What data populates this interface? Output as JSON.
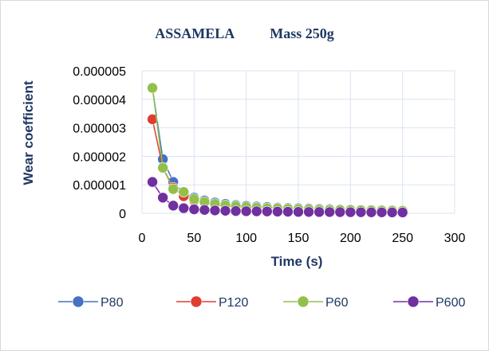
{
  "chart_data": {
    "type": "line",
    "title_parts": [
      "ASSAMELA",
      "Mass 250g"
    ],
    "xlabel": "Time (s)",
    "ylabel": "Wear coefficient",
    "xlim": [
      0,
      300
    ],
    "ylim": [
      0,
      5e-06
    ],
    "x_ticks": [
      "0",
      "50",
      "100",
      "150",
      "200",
      "250",
      "300"
    ],
    "y_ticks": [
      "0",
      "0.000001",
      "0.000002",
      "0.000003",
      "0.000004",
      "0.000005"
    ],
    "grid": "horizontal-and-vertical",
    "legend_position": "bottom",
    "x": [
      10,
      20,
      30,
      40,
      50,
      60,
      70,
      80,
      90,
      100,
      110,
      120,
      130,
      140,
      150,
      160,
      170,
      180,
      190,
      200,
      210,
      220,
      230,
      240,
      250
    ],
    "series": [
      {
        "name": "P80",
        "color": "#4472c4",
        "values": [
          4.4e-06,
          1.9e-06,
          1.1e-06,
          7e-07,
          5.5e-07,
          4.5e-07,
          3.8e-07,
          3.3e-07,
          2.9e-07,
          2.6e-07,
          2.4e-07,
          2.2e-07,
          2e-07,
          1.9e-07,
          1.8e-07,
          1.7e-07,
          1.6e-07,
          1.5e-07,
          1.4e-07,
          1.3e-07,
          1.25e-07,
          1.2e-07,
          1.15e-07,
          1.1e-07,
          1.05e-07
        ]
      },
      {
        "name": "P120",
        "color": "#e03c31",
        "values": [
          3.3e-06,
          1.6e-06,
          9e-07,
          6e-07,
          4.5e-07,
          3.7e-07,
          3.1e-07,
          2.7e-07,
          2.4e-07,
          2.1e-07,
          1.9e-07,
          1.7e-07,
          1.6e-07,
          1.5e-07,
          1.4e-07,
          1.3e-07,
          1.2e-07,
          1.15e-07,
          1.1e-07,
          1.05e-07,
          1e-07,
          9.5e-08,
          9e-08,
          8.5e-08,
          8e-08
        ]
      },
      {
        "name": "P60",
        "color": "#92c04a",
        "values": [
          4.4e-06,
          1.6e-06,
          8.5e-07,
          7.5e-07,
          5e-07,
          4e-07,
          3.3e-07,
          2.8e-07,
          2.5e-07,
          2.2e-07,
          2e-07,
          1.8e-07,
          1.7e-07,
          1.6e-07,
          1.5e-07,
          1.4e-07,
          1.3e-07,
          1.25e-07,
          1.2e-07,
          1.15e-07,
          1.1e-07,
          1.05e-07,
          1e-07,
          9.5e-08,
          9e-08
        ]
      },
      {
        "name": "P600",
        "color": "#7030a0",
        "values": [
          1.1e-06,
          5.5e-07,
          2.7e-07,
          1.8e-07,
          1.4e-07,
          1.2e-07,
          1e-07,
          9e-08,
          8e-08,
          7.5e-08,
          7e-08,
          6.5e-08,
          6e-08,
          5.5e-08,
          5e-08,
          4.8e-08,
          4.6e-08,
          4.4e-08,
          4.2e-08,
          4e-08,
          3.8e-08,
          3.6e-08,
          3.4e-08,
          3.2e-08,
          3e-08
        ]
      }
    ]
  }
}
